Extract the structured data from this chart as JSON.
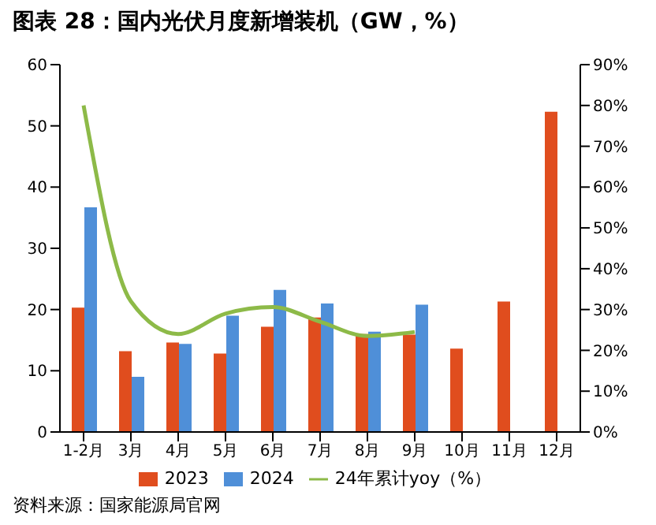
{
  "chart_data": {
    "type": "bar",
    "title": "图表 28：国内光伏月度新增装机（GW，%）",
    "categories": [
      "1-2月",
      "3月",
      "4月",
      "5月",
      "6月",
      "7月",
      "8月",
      "9月",
      "10月",
      "11月",
      "12月"
    ],
    "series": [
      {
        "name": "2023",
        "color": "#e04d1e",
        "values": [
          20.3,
          13.2,
          14.6,
          12.8,
          17.2,
          18.7,
          16.0,
          15.9,
          13.6,
          21.3,
          52.3
        ]
      },
      {
        "name": "2024",
        "color": "#4f8fd8",
        "values": [
          36.7,
          9.0,
          14.4,
          19.0,
          23.2,
          21.0,
          16.4,
          20.8,
          null,
          null,
          null
        ]
      },
      {
        "name": "24年累计yoy（%）",
        "type": "line",
        "axis": "y2",
        "color": "#8dba48",
        "values": [
          80,
          32,
          24,
          29,
          30.6,
          27,
          23.5,
          24.5,
          null,
          null,
          null
        ]
      }
    ],
    "ylim": [
      0,
      60
    ],
    "yticks": [
      0,
      10,
      20,
      30,
      40,
      50,
      60
    ],
    "y2lim": [
      0,
      90
    ],
    "y2ticks": [
      {
        "value": 0,
        "label": "0%"
      },
      {
        "value": 10,
        "label": "10%"
      },
      {
        "value": 20,
        "label": "20%"
      },
      {
        "value": 30,
        "label": "30%"
      },
      {
        "value": 40,
        "label": "40%"
      },
      {
        "value": 50,
        "label": "50%"
      },
      {
        "value": 60,
        "label": "60%"
      },
      {
        "value": 70,
        "label": "70%"
      },
      {
        "value": 80,
        "label": "80%"
      },
      {
        "value": 90,
        "label": "90%"
      }
    ],
    "grid": false,
    "legend": "bottom",
    "marker": "none",
    "line_style": "solid",
    "annotations": [
      "资料来源：国家能源局官网"
    ]
  }
}
